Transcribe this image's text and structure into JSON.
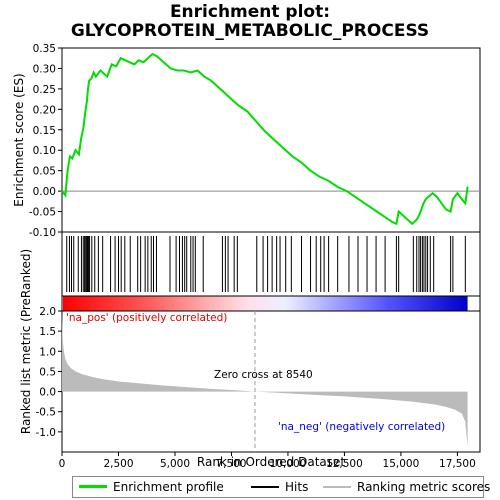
{
  "title_line1": "Enrichment plot:",
  "title_line2": "GLYCOPROTEIN_METABOLIC_PROCESS",
  "legend": {
    "enrichment": "Enrichment profile",
    "hits": "Hits",
    "ranking": "Ranking metric scores"
  },
  "colors": {
    "enrichment_line": "#00dd00",
    "hits": "#000000",
    "ranking_fill": "#bbbbbb",
    "pos_color": "#dd0000",
    "neg_color": "#0000dd"
  },
  "chart_data": [
    {
      "type": "line",
      "name": "enrichment_profile",
      "ylabel": "Enrichment score (ES)",
      "xlim": [
        0,
        18500
      ],
      "ylim": [
        -0.1,
        0.35
      ],
      "yticks": [
        -0.1,
        -0.05,
        0.0,
        0.05,
        0.1,
        0.15,
        0.2,
        0.25,
        0.3,
        0.35
      ],
      "ytick_labels": [
        "-0.10",
        "-0.05",
        "0.00",
        "0.05",
        "0.10",
        "0.15",
        "0.20",
        "0.25",
        "0.30",
        "0.35"
      ],
      "grid": false,
      "x": [
        0,
        150,
        250,
        350,
        450,
        600,
        750,
        850,
        950,
        1000,
        1050,
        1100,
        1150,
        1200,
        1300,
        1400,
        1500,
        1700,
        2000,
        2200,
        2400,
        2600,
        2800,
        3000,
        3200,
        3400,
        3600,
        3800,
        4000,
        4200,
        4500,
        4800,
        5100,
        5400,
        5700,
        6000,
        6300,
        6600,
        7000,
        7400,
        7800,
        8200,
        8600,
        9000,
        9400,
        9800,
        10200,
        10600,
        11000,
        11400,
        11800,
        12200,
        12600,
        13000,
        13400,
        13800,
        14200,
        14600,
        14800,
        14900,
        15100,
        15300,
        15500,
        15700,
        15800,
        15900,
        16000,
        16100,
        16200,
        16400,
        16600,
        16800,
        17000,
        17200,
        17300,
        17500,
        17700,
        17850,
        17950
      ],
      "y": [
        0.0,
        -0.01,
        0.05,
        0.085,
        0.08,
        0.1,
        0.09,
        0.13,
        0.155,
        0.18,
        0.2,
        0.22,
        0.25,
        0.27,
        0.275,
        0.29,
        0.28,
        0.295,
        0.28,
        0.31,
        0.305,
        0.325,
        0.32,
        0.315,
        0.31,
        0.32,
        0.315,
        0.325,
        0.335,
        0.33,
        0.315,
        0.3,
        0.295,
        0.295,
        0.29,
        0.295,
        0.28,
        0.27,
        0.25,
        0.23,
        0.21,
        0.195,
        0.17,
        0.145,
        0.125,
        0.105,
        0.085,
        0.07,
        0.05,
        0.035,
        0.025,
        0.01,
        0.0,
        -0.015,
        -0.03,
        -0.045,
        -0.06,
        -0.075,
        -0.08,
        -0.05,
        -0.06,
        -0.07,
        -0.08,
        -0.07,
        -0.06,
        -0.045,
        -0.03,
        -0.02,
        -0.015,
        -0.005,
        -0.015,
        -0.03,
        -0.045,
        -0.05,
        -0.02,
        -0.005,
        -0.02,
        -0.03,
        0.01
      ]
    },
    {
      "type": "scatter",
      "name": "hits",
      "positions": [
        210,
        330,
        420,
        520,
        720,
        860,
        940,
        1000,
        1050,
        1090,
        1130,
        1170,
        1220,
        1320,
        1450,
        1610,
        1800,
        2150,
        2350,
        2500,
        2620,
        2780,
        3020,
        3350,
        3480,
        3680,
        3800,
        3950,
        4050,
        4180,
        4780,
        5050,
        5200,
        5330,
        5430,
        5520,
        5700,
        5800,
        5900,
        6250,
        7100,
        7230,
        7350,
        7620,
        7760,
        8620,
        8900,
        9100,
        9300,
        9500,
        9650,
        9900,
        10150,
        10600,
        11000,
        11250,
        11450,
        11600,
        11800,
        12200,
        12700,
        13100,
        13500,
        13900,
        14300,
        14800,
        14900,
        15550,
        15700,
        15800,
        15870,
        15950,
        16020,
        16100,
        16180,
        16300,
        16450,
        17200,
        17300,
        17850
      ]
    },
    {
      "type": "area",
      "name": "ranked_list_metric",
      "xlabel": "Rank in Ordered Dataset",
      "ylabel": "Ranked list metric (PreRanked)",
      "xlim": [
        0,
        18500
      ],
      "ylim": [
        -1.5,
        2.0
      ],
      "xticks": [
        0,
        2500,
        5000,
        7500,
        10000,
        12500,
        15000,
        17500
      ],
      "xtick_labels": [
        "0",
        "2,500",
        "5,000",
        "7,500",
        "10,000",
        "12,500",
        "15,000",
        "17,500"
      ],
      "yticks": [
        -1.0,
        -0.5,
        0.0,
        0.5,
        1.0,
        1.5,
        2.0
      ],
      "ytick_labels": [
        "-1.0",
        "-0.5",
        "0.0",
        "0.5",
        "1.0",
        "1.5",
        "2.0"
      ],
      "x": [
        0,
        30,
        80,
        150,
        250,
        400,
        600,
        900,
        1300,
        1800,
        2500,
        3500,
        4500,
        5500,
        6500,
        7500,
        8540,
        9500,
        10500,
        11500,
        12500,
        13500,
        14500,
        15500,
        16500,
        17000,
        17400,
        17700,
        17850,
        17950
      ],
      "values": [
        2.0,
        1.3,
        1.0,
        0.8,
        0.68,
        0.58,
        0.5,
        0.43,
        0.37,
        0.31,
        0.25,
        0.2,
        0.15,
        0.11,
        0.07,
        0.04,
        0.0,
        -0.03,
        -0.06,
        -0.09,
        -0.12,
        -0.16,
        -0.2,
        -0.25,
        -0.32,
        -0.38,
        -0.45,
        -0.55,
        -0.75,
        -1.4
      ],
      "zero_cross": 8540,
      "zero_cross_label": "Zero cross at 8540",
      "pos_label": "'na_pos' (positively correlated)",
      "neg_label": "'na_neg' (negatively correlated)"
    }
  ]
}
